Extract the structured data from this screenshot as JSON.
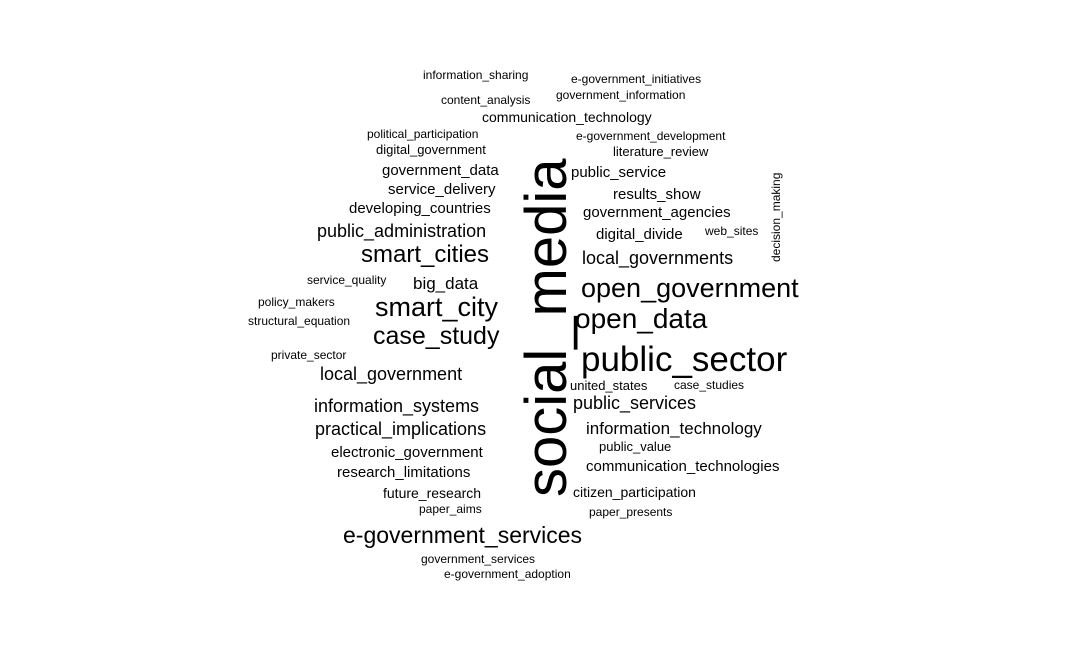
{
  "words": [
    {
      "text": "social_media"
    },
    {
      "text": "public_sector"
    },
    {
      "text": "open_government"
    },
    {
      "text": "open_data"
    },
    {
      "text": "smart_city"
    },
    {
      "text": "smart_cities"
    },
    {
      "text": "case_study"
    },
    {
      "text": "e-government_services"
    },
    {
      "text": "public_administration"
    },
    {
      "text": "local_governments"
    },
    {
      "text": "local_government"
    },
    {
      "text": "information_systems"
    },
    {
      "text": "practical_implications"
    },
    {
      "text": "information_technology"
    },
    {
      "text": "public_services"
    },
    {
      "text": "big_data"
    },
    {
      "text": "digital_divide"
    },
    {
      "text": "government_agencies"
    },
    {
      "text": "results_show"
    },
    {
      "text": "public_service"
    },
    {
      "text": "government_data"
    },
    {
      "text": "service_delivery"
    },
    {
      "text": "developing_countries"
    },
    {
      "text": "electronic_government"
    },
    {
      "text": "research_limitations"
    },
    {
      "text": "communication_technologies"
    },
    {
      "text": "communication_technology"
    },
    {
      "text": "citizen_participation"
    },
    {
      "text": "future_research"
    },
    {
      "text": "digital_government"
    },
    {
      "text": "literature_review"
    },
    {
      "text": "united_states"
    },
    {
      "text": "public_value"
    },
    {
      "text": "content_analysis"
    },
    {
      "text": "government_information"
    },
    {
      "text": "information_sharing"
    },
    {
      "text": "e-government_initiatives"
    },
    {
      "text": "political_participation"
    },
    {
      "text": "e-government_development"
    },
    {
      "text": "service_quality"
    },
    {
      "text": "policy_makers"
    },
    {
      "text": "structural_equation"
    },
    {
      "text": "private_sector"
    },
    {
      "text": "case_studies"
    },
    {
      "text": "web_sites"
    },
    {
      "text": "decision_making"
    },
    {
      "text": "paper_aims"
    },
    {
      "text": "paper_presents"
    },
    {
      "text": "government_services"
    },
    {
      "text": "e-government_adoption"
    }
  ]
}
